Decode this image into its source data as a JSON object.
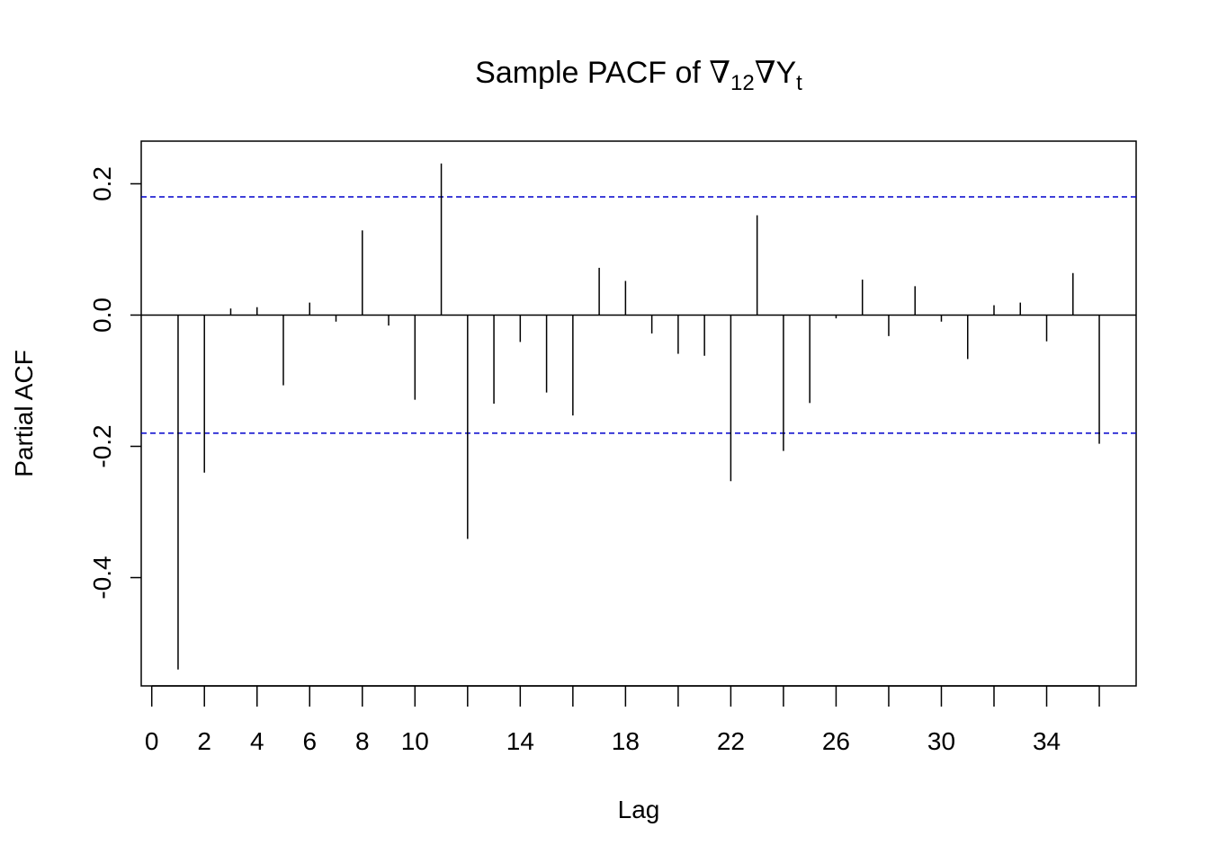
{
  "chart_data": {
    "type": "bar",
    "title": {
      "prefix": "Sample PACF of ",
      "nabla": "∇",
      "seasonal_subscript": "12",
      "variable": "Y",
      "variable_subscript": "t"
    },
    "xlabel": "Lag",
    "ylabel": "Partial ACF",
    "xlim": [
      -0.4,
      37.4
    ],
    "ylim": [
      -0.565,
      0.265
    ],
    "x_ticks": [
      0,
      2,
      4,
      6,
      8,
      10,
      14,
      18,
      22,
      26,
      30,
      34
    ],
    "x_ticks_unlabeled": [
      12,
      16,
      20,
      24,
      28,
      32,
      36
    ],
    "y_ticks": [
      0.2,
      0.0,
      -0.2,
      -0.4
    ],
    "y_tick_labels": [
      "0.2",
      "0.0",
      "-0.2",
      "-0.4"
    ],
    "confidence_bound": 0.18,
    "bound_color": "#0000cc",
    "line_color": "#000000",
    "lags": [
      1,
      2,
      3,
      4,
      5,
      6,
      7,
      8,
      9,
      10,
      11,
      12,
      13,
      14,
      15,
      16,
      17,
      18,
      19,
      20,
      21,
      22,
      23,
      24,
      25,
      26,
      27,
      28,
      29,
      30,
      31,
      32,
      33,
      34,
      35,
      36
    ],
    "values": [
      -0.54,
      -0.24,
      0.01,
      0.012,
      -0.107,
      0.019,
      -0.01,
      0.129,
      -0.016,
      -0.129,
      0.231,
      -0.341,
      -0.135,
      -0.041,
      -0.118,
      -0.153,
      0.072,
      0.052,
      -0.028,
      -0.059,
      -0.062,
      -0.253,
      0.152,
      -0.207,
      -0.134,
      -0.005,
      0.054,
      -0.032,
      0.044,
      -0.01,
      -0.067,
      0.015,
      0.019,
      -0.04,
      0.064,
      -0.196
    ]
  }
}
